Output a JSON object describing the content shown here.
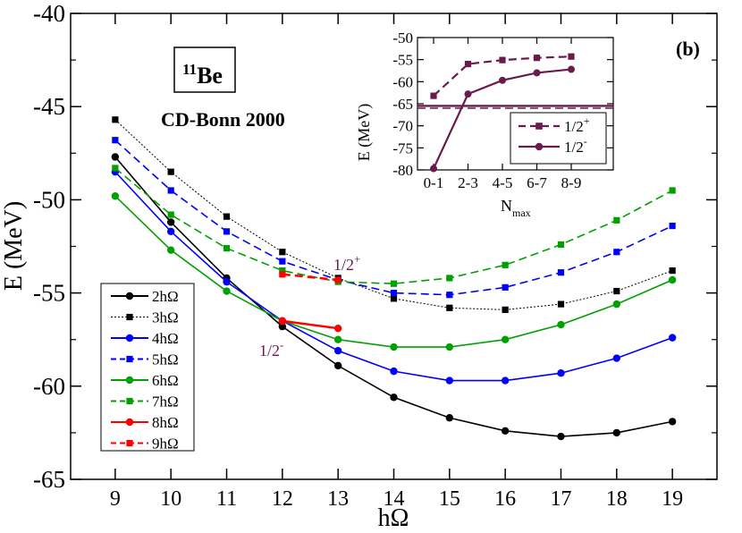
{
  "chart_data": [
    {
      "type": "line",
      "panel_label": "(b)",
      "nucleus_mass": "11",
      "nucleus_symbol": "Be",
      "interaction": "CD-Bonn 2000",
      "xlabel": "hΩ",
      "ylabel": "E (MeV)",
      "xlim": [
        8.2,
        19.8
      ],
      "ylim": [
        -65,
        -40
      ],
      "x_ticks": [
        9,
        10,
        11,
        12,
        13,
        14,
        15,
        16,
        17,
        18,
        19
      ],
      "y_ticks": [
        -65,
        -60,
        -55,
        -50,
        -45,
        -40
      ],
      "legend_position": "bottom-left",
      "annotations": {
        "plus": "1/2",
        "plus_sup": "+",
        "minus": "1/2",
        "minus_sup": "-"
      },
      "series": [
        {
          "name": "2hΩ",
          "color": "#000000",
          "dash": "solid",
          "marker": "circle",
          "x": [
            9,
            10,
            11,
            12,
            13,
            14,
            15,
            16,
            17,
            18,
            19
          ],
          "values": [
            -47.7,
            -51.2,
            -54.2,
            -56.8,
            -58.9,
            -60.6,
            -61.7,
            -62.4,
            -62.7,
            -62.5,
            -61.9
          ]
        },
        {
          "name": "3hΩ",
          "color": "#000000",
          "dash": "dotted",
          "marker": "square",
          "x": [
            9,
            10,
            11,
            12,
            13,
            14,
            15,
            16,
            17,
            18,
            19
          ],
          "values": [
            -45.7,
            -48.5,
            -50.9,
            -52.8,
            -54.2,
            -55.3,
            -55.8,
            -55.9,
            -55.6,
            -54.9,
            -53.8
          ]
        },
        {
          "name": "4hΩ",
          "color": "#0000ff",
          "dash": "solid",
          "marker": "circle",
          "x": [
            9,
            10,
            11,
            12,
            13,
            14,
            15,
            16,
            17,
            18,
            19
          ],
          "values": [
            -48.5,
            -51.7,
            -54.4,
            -56.5,
            -58.1,
            -59.2,
            -59.7,
            -59.7,
            -59.3,
            -58.5,
            -57.4
          ]
        },
        {
          "name": "5hΩ",
          "color": "#0000ff",
          "dash": "dashed",
          "marker": "square",
          "x": [
            9,
            10,
            11,
            12,
            13,
            14,
            15,
            16,
            17,
            18,
            19
          ],
          "values": [
            -46.8,
            -49.5,
            -51.7,
            -53.3,
            -54.3,
            -55.0,
            -55.1,
            -54.7,
            -53.9,
            -52.8,
            -51.4
          ]
        },
        {
          "name": "6hΩ",
          "color": "#00a000",
          "dash": "solid",
          "marker": "circle",
          "x": [
            9,
            10,
            11,
            12,
            13,
            14,
            15,
            16,
            17,
            18,
            19
          ],
          "values": [
            -49.8,
            -52.7,
            -54.9,
            -56.5,
            -57.5,
            -57.9,
            -57.9,
            -57.5,
            -56.7,
            -55.6,
            -54.3
          ]
        },
        {
          "name": "7hΩ",
          "color": "#00a000",
          "dash": "dashed",
          "marker": "square",
          "x": [
            9,
            10,
            11,
            12,
            13,
            14,
            15,
            16,
            17,
            18,
            19
          ],
          "values": [
            -48.3,
            -50.8,
            -52.6,
            -53.8,
            -54.4,
            -54.5,
            -54.2,
            -53.5,
            -52.4,
            -51.1,
            -49.5
          ]
        },
        {
          "name": "8hΩ",
          "color": "#ff0000",
          "dash": "solid",
          "marker": "circle",
          "x": [
            12,
            13
          ],
          "values": [
            -56.5,
            -56.9
          ]
        },
        {
          "name": "9hΩ",
          "color": "#ff0000",
          "dash": "dashed",
          "marker": "square",
          "x": [
            12,
            13
          ],
          "values": [
            -54.0,
            -54.3
          ]
        }
      ]
    },
    {
      "type": "line",
      "position": "inset-top-right",
      "xlabel": "N",
      "xlabel_sub": "max",
      "ylabel": "E (MeV)",
      "categories": [
        "0-1",
        "2-3",
        "4-5",
        "6-7",
        "8-9"
      ],
      "ylim": [
        -80,
        -50
      ],
      "y_ticks": [
        -80,
        -75,
        -70,
        -65,
        -60,
        -55,
        -50
      ],
      "reference_line": -65.5,
      "legend_position": "bottom-right",
      "series": [
        {
          "name": "1/2",
          "name_sup": "+",
          "color": "#6a1a4c",
          "dash": "dashed",
          "marker": "square",
          "values": [
            -63.2,
            -56.0,
            -55.1,
            -54.6,
            -54.3
          ]
        },
        {
          "name": "1/2",
          "name_sup": "-",
          "color": "#6a1a4c",
          "dash": "solid",
          "marker": "circle",
          "values": [
            -79.7,
            -62.8,
            -59.7,
            -58.0,
            -57.2
          ]
        }
      ]
    }
  ]
}
